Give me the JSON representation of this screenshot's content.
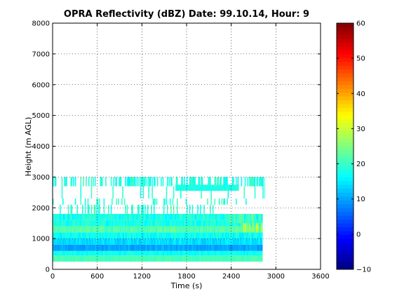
{
  "chart_data": {
    "type": "heatmap",
    "title": "OPRA Reflectivity (dBZ)  Date: 99.10.14, Hour: 9",
    "xlabel": "Time (s)",
    "ylabel": "Height (m AGL)",
    "xlim": [
      0,
      3600
    ],
    "ylim": [
      0,
      8000
    ],
    "xticks": [
      "0",
      "600",
      "1200",
      "1800",
      "2400",
      "3000",
      "3600"
    ],
    "yticks": [
      "0",
      "1000",
      "2000",
      "3000",
      "4000",
      "5000",
      "6000",
      "7000",
      "8000"
    ],
    "grid": true,
    "colorbar": {
      "range": [
        -10,
        60
      ],
      "ticks": [
        "−10",
        "0",
        "10",
        "20",
        "30",
        "40",
        "50",
        "60"
      ],
      "colormap": "jet"
    },
    "layers": [
      {
        "x": [
          0,
          2820
        ],
        "y": [
          250,
          450
        ],
        "value": 21,
        "speckle": 0.5
      },
      {
        "x": [
          0,
          2820
        ],
        "y": [
          450,
          600
        ],
        "value": 17,
        "speckle": 0.6
      },
      {
        "x": [
          0,
          2820
        ],
        "y": [
          600,
          800
        ],
        "value": 10,
        "speckle": 0.6
      },
      {
        "x": [
          0,
          2820
        ],
        "y": [
          800,
          1000
        ],
        "value": 14,
        "speckle": 0.7
      },
      {
        "x": [
          0,
          2820
        ],
        "y": [
          1000,
          1200
        ],
        "value": 17,
        "speckle": 0.8
      },
      {
        "x": [
          0,
          2820
        ],
        "y": [
          1200,
          1400
        ],
        "value": 22,
        "speckle": 0.9
      },
      {
        "x": [
          0,
          2820
        ],
        "y": [
          1400,
          1600
        ],
        "value": 18,
        "speckle": 0.9
      },
      {
        "x": [
          0,
          2820
        ],
        "y": [
          1600,
          1800
        ],
        "value": 18,
        "speckle": 1.0
      },
      {
        "x": [
          0,
          2250
        ],
        "y": [
          1800,
          2100
        ],
        "value": 19,
        "speckle": 1.0,
        "fill": 0.22
      },
      {
        "x": [
          0,
          2850
        ],
        "y": [
          2100,
          2300
        ],
        "value": 19,
        "speckle": 1.0,
        "fill": 0.12
      },
      {
        "x": [
          0,
          2850
        ],
        "y": [
          2300,
          2700
        ],
        "value": 18,
        "speckle": 1.0,
        "fill": 0.1
      },
      {
        "x": [
          1650,
          2500
        ],
        "y": [
          2550,
          2750
        ],
        "value": 18,
        "speckle": 0.4
      },
      {
        "x": [
          0,
          2850
        ],
        "y": [
          2700,
          3000
        ],
        "value": 18,
        "speckle": 1.0,
        "fill": 0.5
      }
    ],
    "notable": [
      {
        "x": [
          2550,
          2820
        ],
        "y": [
          1200,
          1500
        ],
        "value": 28
      },
      {
        "x": [
          2350,
          2800
        ],
        "y": [
          1500,
          1800
        ],
        "value": 22
      }
    ]
  }
}
